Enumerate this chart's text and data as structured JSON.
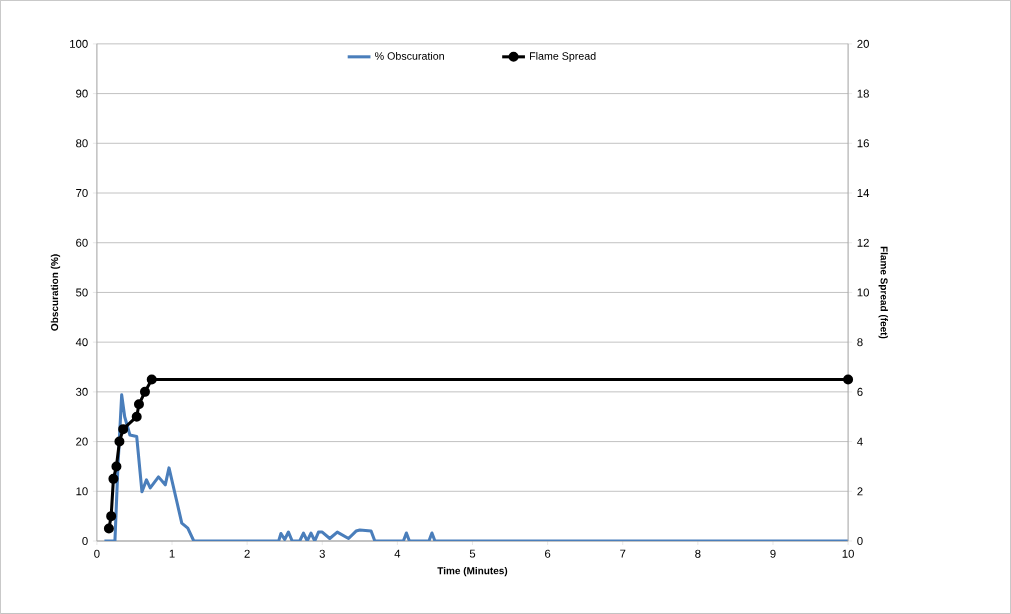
{
  "chart_data": {
    "type": "line",
    "xlabel": "Time (Minutes)",
    "ylabel": "Obscuration (%)",
    "y2label": "Flame Spread (feet)",
    "xlim": [
      0,
      10
    ],
    "xticks": [
      0,
      1,
      2,
      3,
      4,
      5,
      6,
      7,
      8,
      9,
      10
    ],
    "ylim": [
      0,
      100
    ],
    "yticks": [
      0,
      10,
      20,
      30,
      40,
      50,
      60,
      70,
      80,
      90,
      100
    ],
    "y2lim": [
      0,
      20
    ],
    "y2ticks": [
      0,
      2,
      4,
      6,
      8,
      10,
      12,
      14,
      16,
      18,
      20
    ],
    "grid": "y",
    "legend": "top",
    "series": [
      {
        "name": "% Obscuration",
        "color": "#4a7ebb",
        "marker": "none",
        "x": [
          0.1,
          0.24,
          0.28,
          0.33,
          0.37,
          0.44,
          0.53,
          0.6,
          0.66,
          0.71,
          0.82,
          0.91,
          0.96,
          1.06,
          1.13,
          1.21,
          1.29,
          2.42,
          2.45,
          2.5,
          2.55,
          2.6,
          2.7,
          2.75,
          2.8,
          2.85,
          2.9,
          2.95,
          3.0,
          3.1,
          3.2,
          3.35,
          3.45,
          3.5,
          3.65,
          3.7,
          4.08,
          4.12,
          4.16,
          4.42,
          4.46,
          4.5,
          10
        ],
        "values": [
          0,
          0,
          15,
          29.4,
          25,
          21.3,
          21,
          9.9,
          12.3,
          10.7,
          12.9,
          11.3,
          14.7,
          8.2,
          3.6,
          2.6,
          0,
          0,
          1.5,
          0.3,
          1.8,
          0,
          0,
          1.6,
          0,
          1.6,
          0,
          1.8,
          1.8,
          0.5,
          1.8,
          0.5,
          2,
          2.2,
          2,
          0,
          0,
          1.6,
          0,
          0,
          1.6,
          0,
          0
        ]
      },
      {
        "name": "Flame Spread",
        "color": "#000000",
        "axis": "y2",
        "marker": "circle",
        "x": [
          0.16,
          0.19,
          0.22,
          0.26,
          0.3,
          0.35,
          0.53,
          0.56,
          0.64,
          0.73,
          10
        ],
        "values": [
          0.5,
          1.0,
          2.5,
          3.0,
          4.0,
          4.5,
          5.0,
          5.5,
          6.0,
          6.5,
          6.5
        ]
      }
    ]
  }
}
